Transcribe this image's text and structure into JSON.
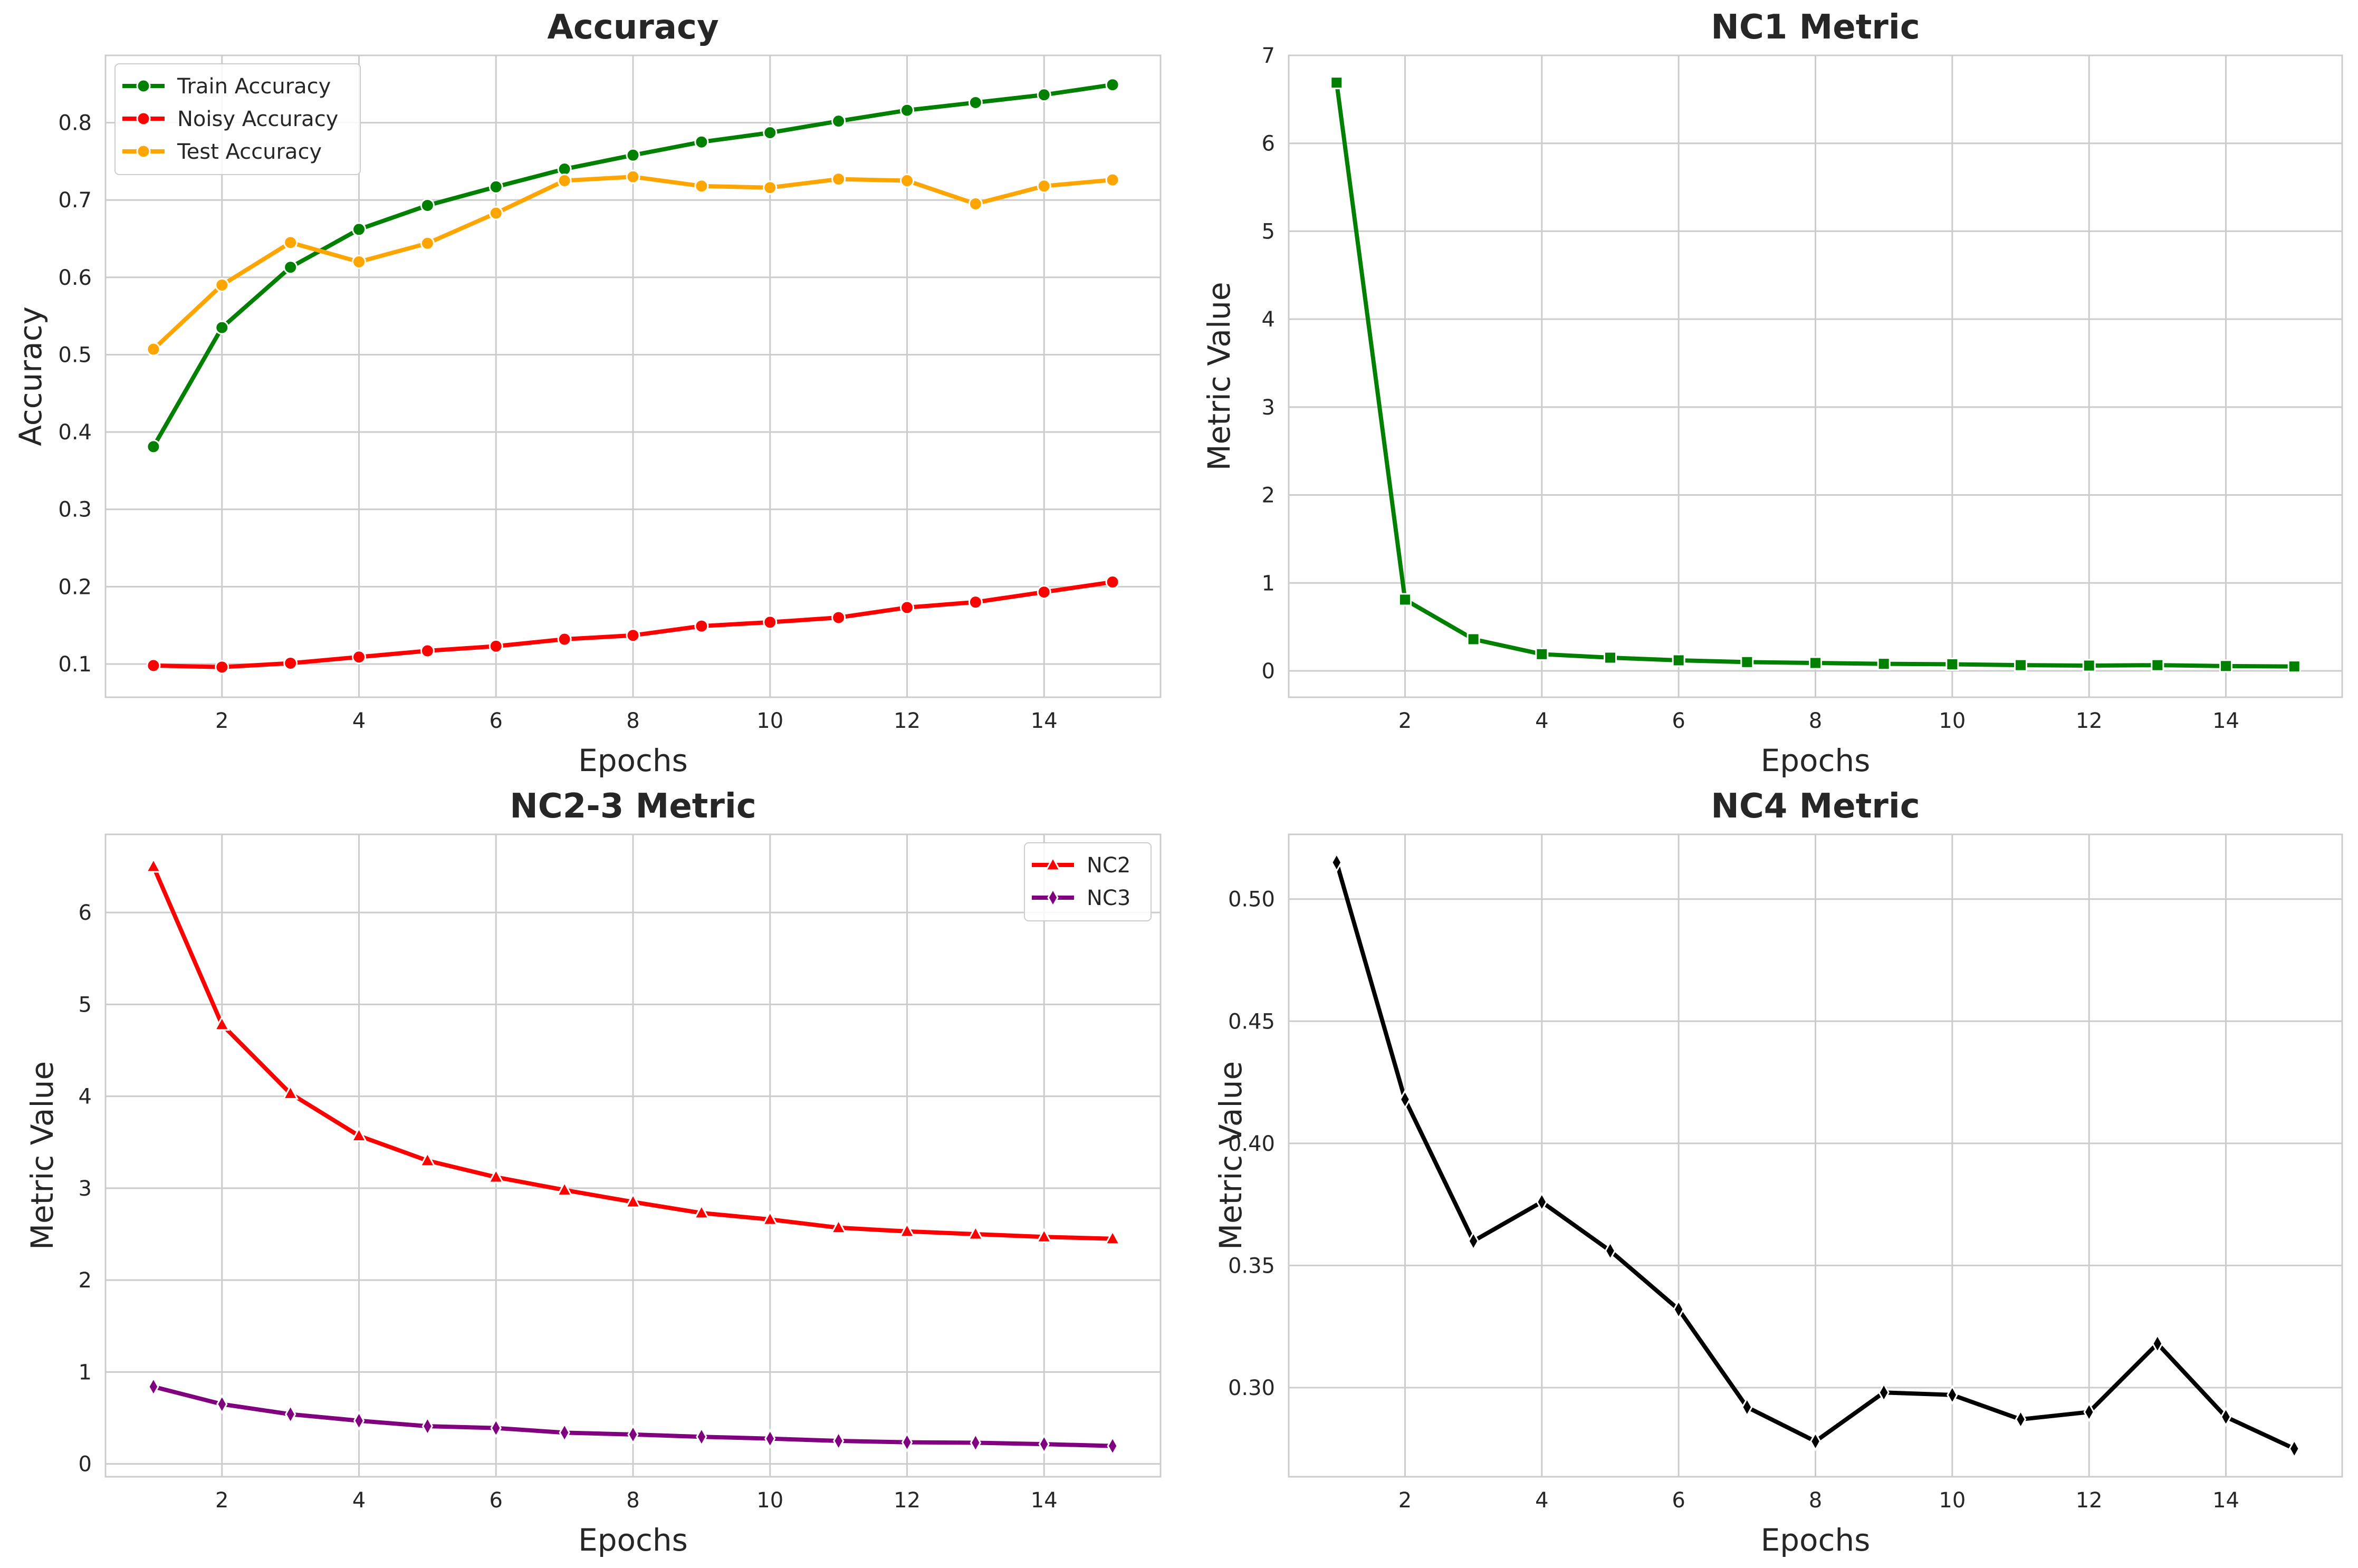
{
  "chart_data": [
    {
      "type": "line",
      "title": "Accuracy",
      "xlabel": "Epochs",
      "ylabel": "Accuracy",
      "x": [
        1,
        2,
        3,
        4,
        5,
        6,
        7,
        8,
        9,
        10,
        11,
        12,
        13,
        14,
        15
      ],
      "xticks": [
        2,
        4,
        6,
        8,
        10,
        12,
        14
      ],
      "xlim": [
        0.3,
        15.7
      ],
      "yticks": [
        0.1,
        0.2,
        0.3,
        0.4,
        0.5,
        0.6,
        0.7,
        0.8
      ],
      "ylim": [
        0.057,
        0.887
      ],
      "grid": true,
      "legend": "top-left",
      "series": [
        {
          "name": "Train Accuracy",
          "color": "#008000",
          "marker": "circle",
          "values": [
            0.381,
            0.535,
            0.613,
            0.662,
            0.693,
            0.717,
            0.74,
            0.758,
            0.775,
            0.787,
            0.802,
            0.816,
            0.826,
            0.836,
            0.849
          ]
        },
        {
          "name": "Noisy Accuracy",
          "color": "#ff0000",
          "marker": "circle",
          "values": [
            0.098,
            0.096,
            0.101,
            0.109,
            0.117,
            0.123,
            0.132,
            0.137,
            0.149,
            0.154,
            0.16,
            0.173,
            0.18,
            0.193,
            0.206
          ]
        },
        {
          "name": "Test Accuracy",
          "color": "#ffa500",
          "marker": "circle",
          "values": [
            0.507,
            0.59,
            0.645,
            0.62,
            0.644,
            0.683,
            0.725,
            0.73,
            0.718,
            0.716,
            0.727,
            0.725,
            0.695,
            0.718,
            0.726
          ]
        }
      ]
    },
    {
      "type": "line",
      "title": "NC1 Metric",
      "xlabel": "Epochs",
      "ylabel": "Metric Value",
      "x": [
        1,
        2,
        3,
        4,
        5,
        6,
        7,
        8,
        9,
        10,
        11,
        12,
        13,
        14,
        15
      ],
      "xticks": [
        2,
        4,
        6,
        8,
        10,
        12,
        14
      ],
      "xlim": [
        0.3,
        15.7
      ],
      "yticks": [
        0,
        1,
        2,
        3,
        4,
        5,
        6,
        7
      ],
      "ylim": [
        -0.3,
        7.0
      ],
      "grid": true,
      "series": [
        {
          "name": "",
          "color": "#008000",
          "marker": "square",
          "values": [
            6.69,
            0.81,
            0.36,
            0.19,
            0.15,
            0.12,
            0.1,
            0.09,
            0.08,
            0.075,
            0.065,
            0.06,
            0.065,
            0.055,
            0.05
          ]
        }
      ]
    },
    {
      "type": "line",
      "title": "NC2-3 Metric",
      "xlabel": "Epochs",
      "ylabel": "Metric Value",
      "x": [
        1,
        2,
        3,
        4,
        5,
        6,
        7,
        8,
        9,
        10,
        11,
        12,
        13,
        14,
        15
      ],
      "xticks": [
        2,
        4,
        6,
        8,
        10,
        12,
        14
      ],
      "xlim": [
        0.3,
        15.7
      ],
      "yticks": [
        0,
        1,
        2,
        3,
        4,
        5,
        6
      ],
      "ylim": [
        -0.14,
        6.85
      ],
      "grid": true,
      "legend": "top-right",
      "series": [
        {
          "name": "NC2",
          "color": "#ff0000",
          "marker": "triangle",
          "values": [
            6.5,
            4.78,
            4.03,
            3.57,
            3.3,
            3.12,
            2.98,
            2.85,
            2.73,
            2.66,
            2.57,
            2.53,
            2.5,
            2.47,
            2.45
          ]
        },
        {
          "name": "NC3",
          "color": "#800080",
          "marker": "diamond",
          "values": [
            0.84,
            0.65,
            0.54,
            0.47,
            0.41,
            0.39,
            0.34,
            0.32,
            0.295,
            0.275,
            0.25,
            0.235,
            0.23,
            0.215,
            0.195
          ]
        }
      ]
    },
    {
      "type": "line",
      "title": "NC4 Metric",
      "xlabel": "Epochs",
      "ylabel": "Metric Value",
      "x": [
        1,
        2,
        3,
        4,
        5,
        6,
        7,
        8,
        9,
        10,
        11,
        12,
        13,
        14,
        15
      ],
      "xticks": [
        2,
        4,
        6,
        8,
        10,
        12,
        14
      ],
      "xlim": [
        0.3,
        15.7
      ],
      "yticks": [
        0.3,
        0.35,
        0.4,
        0.45,
        0.5
      ],
      "yticklabels": [
        "0.30",
        "0.35",
        "0.40",
        "0.45",
        "0.50"
      ],
      "ylim": [
        0.2635,
        0.5265
      ],
      "grid": true,
      "series": [
        {
          "name": "",
          "color": "#000000",
          "marker": "diamond",
          "values": [
            0.515,
            0.418,
            0.36,
            0.376,
            0.356,
            0.332,
            0.292,
            0.278,
            0.298,
            0.297,
            0.287,
            0.29,
            0.318,
            0.288,
            0.275
          ]
        }
      ]
    }
  ]
}
